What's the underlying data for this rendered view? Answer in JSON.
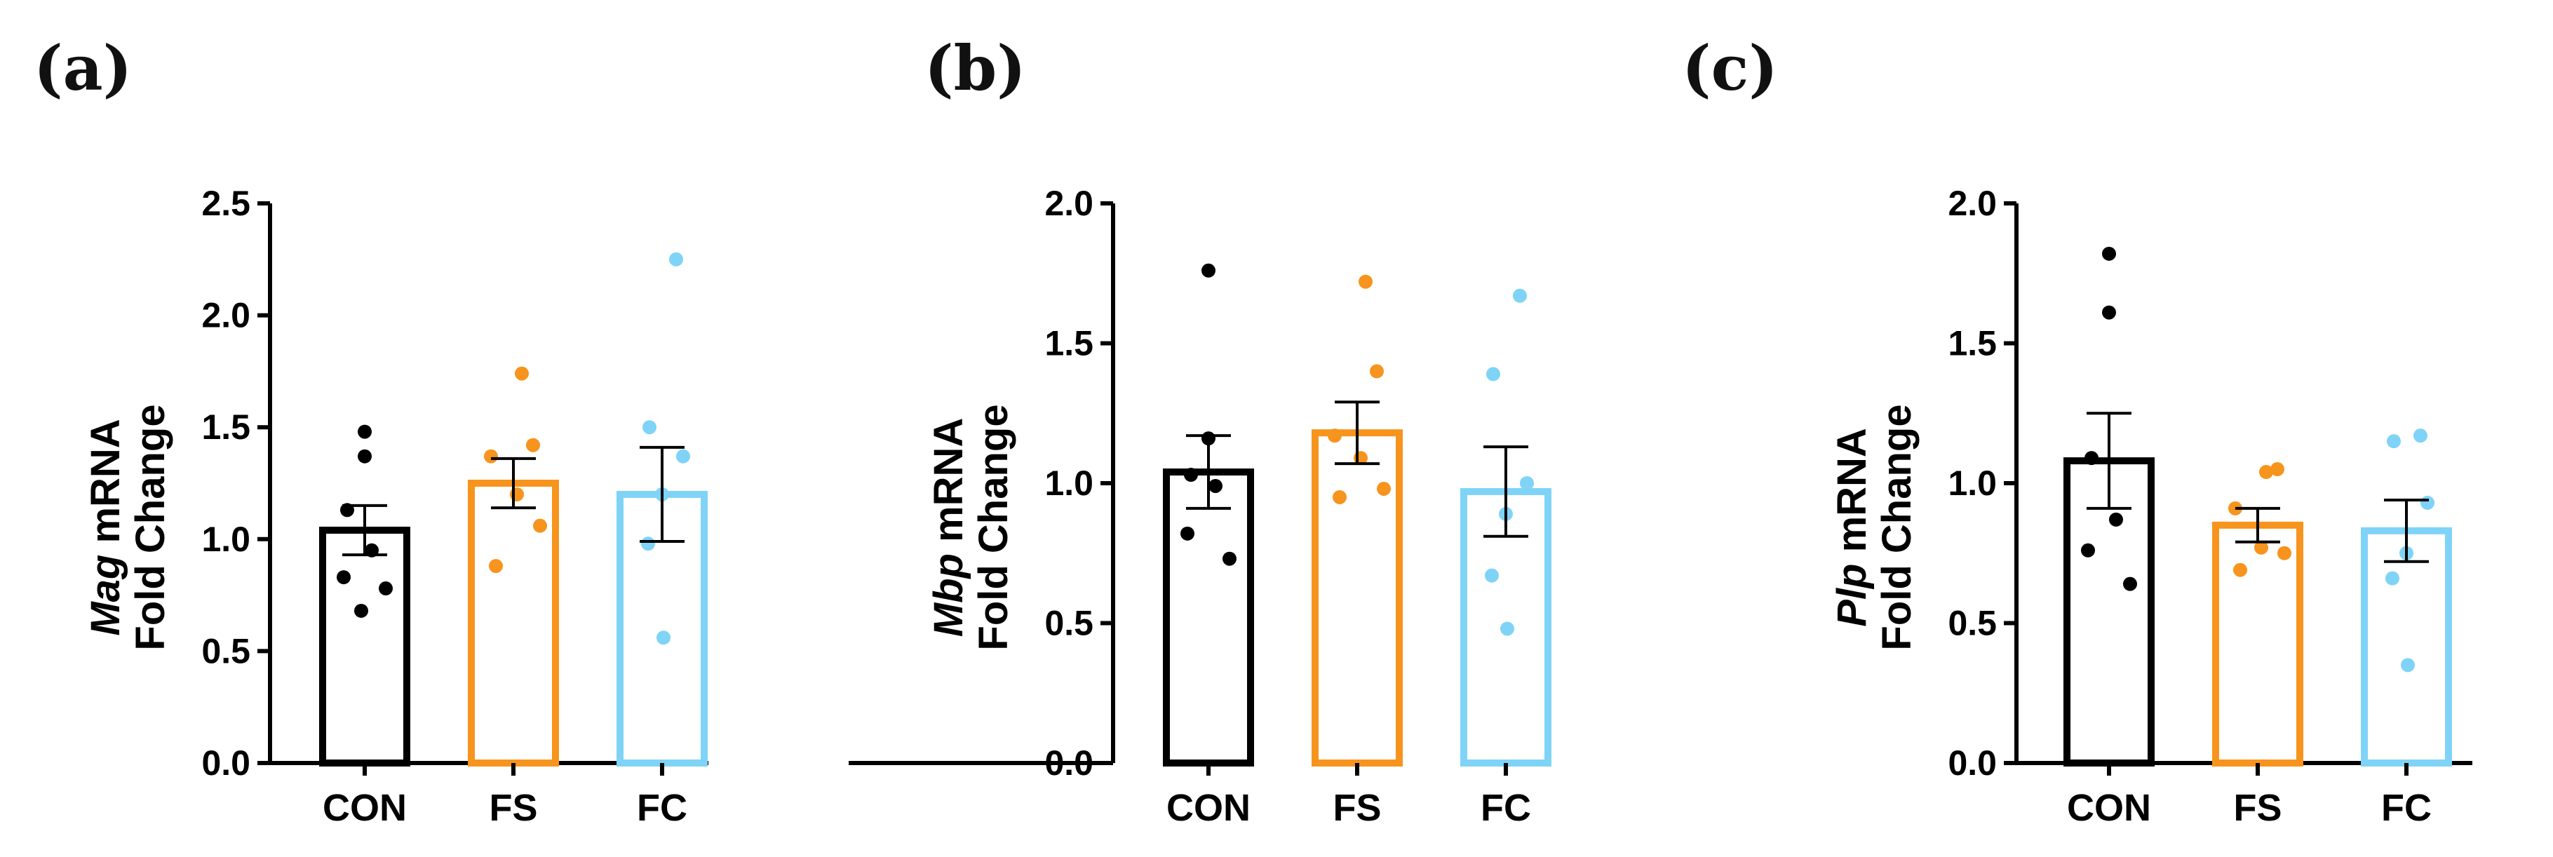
{
  "chart_data": [
    {
      "panel": "(a)",
      "type": "bar",
      "gene": "Mag",
      "ylabel_suffix": " mRNA",
      "ylabel_line2": "Fold Change",
      "categories": [
        "CON",
        "FS",
        "FC"
      ],
      "colors": [
        "#000000",
        "#F7941D",
        "#7FD3F7"
      ],
      "ylim": [
        0,
        2.5
      ],
      "yticks": [
        0.0,
        0.5,
        1.0,
        1.5,
        2.0,
        2.5
      ],
      "ytick_labels": [
        "0.0",
        "0.5",
        "1.0",
        "1.5",
        "2.0",
        "2.5"
      ],
      "means": [
        1.04,
        1.25,
        1.2
      ],
      "sem": [
        0.11,
        0.11,
        0.21
      ],
      "points": [
        [
          1.48,
          1.37,
          1.13,
          0.95,
          0.83,
          0.78,
          0.68
        ],
        [
          1.74,
          1.42,
          1.37,
          1.2,
          1.06,
          0.88
        ],
        [
          2.25,
          1.5,
          1.37,
          1.2,
          0.98,
          0.56
        ]
      ]
    },
    {
      "panel": "(b)",
      "type": "bar",
      "gene": "Mbp",
      "ylabel_suffix": " mRNA",
      "ylabel_line2": "Fold Change",
      "categories": [
        "CON",
        "FS",
        "FC"
      ],
      "colors": [
        "#000000",
        "#F7941D",
        "#7FD3F7"
      ],
      "ylim": [
        0,
        2.0
      ],
      "yticks": [
        0.0,
        0.5,
        1.0,
        1.5,
        2.0
      ],
      "ytick_labels": [
        "0.0",
        "0.5",
        "1.0",
        "1.5",
        "2.0"
      ],
      "means": [
        1.04,
        1.18,
        0.97
      ],
      "sem": [
        0.13,
        0.11,
        0.16
      ],
      "points": [
        [
          1.76,
          1.16,
          1.03,
          0.99,
          0.82,
          0.73
        ],
        [
          1.72,
          1.4,
          1.17,
          1.09,
          0.98,
          0.95
        ],
        [
          1.67,
          1.39,
          1.0,
          0.89,
          0.67,
          0.48
        ]
      ]
    },
    {
      "panel": "(c)",
      "type": "bar",
      "gene": "Plp",
      "ylabel_suffix": " mRNA",
      "ylabel_line2": "Fold Change",
      "categories": [
        "CON",
        "FS",
        "FC"
      ],
      "colors": [
        "#000000",
        "#F7941D",
        "#7FD3F7"
      ],
      "ylim": [
        0,
        2.0
      ],
      "yticks": [
        0.0,
        0.5,
        1.0,
        1.5,
        2.0
      ],
      "ytick_labels": [
        "0.0",
        "0.5",
        "1.0",
        "1.5",
        "2.0"
      ],
      "means": [
        1.08,
        0.85,
        0.83
      ],
      "sem": [
        0.17,
        0.06,
        0.11
      ],
      "points": [
        [
          1.82,
          1.61,
          1.09,
          0.87,
          0.76,
          0.64
        ],
        [
          1.04,
          1.05,
          0.91,
          0.77,
          0.75,
          0.69
        ],
        [
          1.17,
          1.15,
          0.93,
          0.75,
          0.66,
          0.35
        ]
      ]
    }
  ]
}
